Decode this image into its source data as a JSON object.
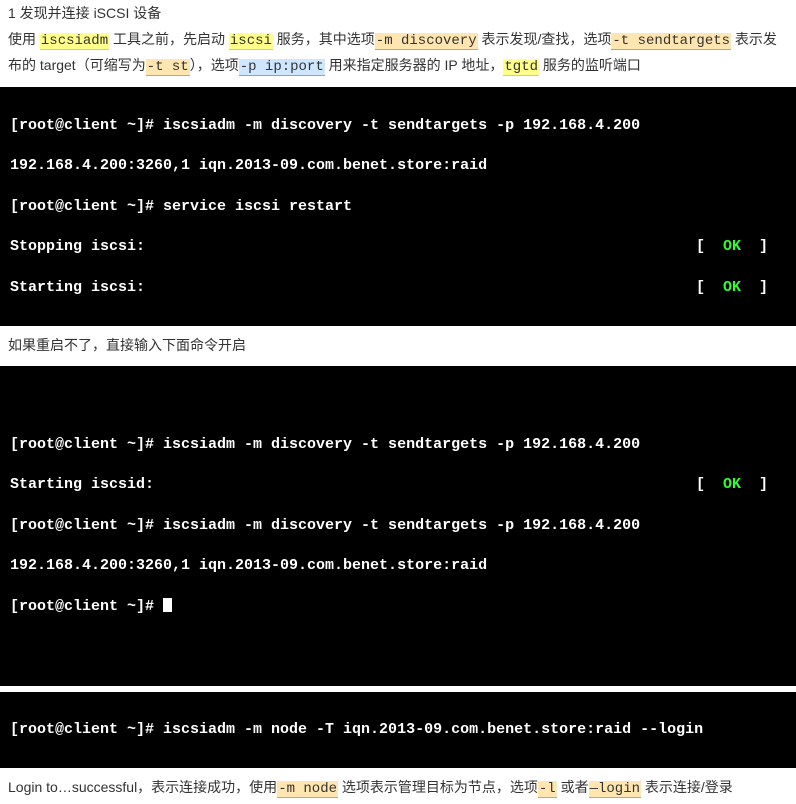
{
  "heading": "1 发现并连接 iSCSI 设备",
  "para1": {
    "t1": "使用 ",
    "hl1": "iscsiadm",
    "t2": " 工具之前，先启动 ",
    "hl2": "iscsi",
    "t3": " 服务，其中选项",
    "hl3": "-m discovery",
    "t4": " 表示发现/查找，选项",
    "hl4": "-t sendtargets",
    "t5": " 表示发布的 target（可缩写为",
    "hl5": "-t st",
    "t6": "），选项",
    "hl6": "-p ip:port",
    "t7": " 用来指定服务器的 IP 地址，",
    "hl7": "tgtd",
    "t8": " 服务的监听端口"
  },
  "term1": {
    "l1": "[root@client ~]# iscsiadm -m discovery -t sendtargets -p 192.168.4.200",
    "l2": "192.168.4.200:3260,1 iqn.2013-09.com.benet.store:raid",
    "l3": "[root@client ~]# service iscsi restart",
    "s1l": "Stopping iscsi:",
    "s2l": "Starting iscsi:",
    "lb": "[  ",
    "ok": "OK",
    "rb": "  ]"
  },
  "mid_text": "如果重启不了，直接输入下面命令开启",
  "term2": {
    "blank": " ",
    "l1": "[root@client ~]# iscsiadm -m discovery -t sendtargets -p 192.168.4.200",
    "s1l": "Starting iscsid:",
    "lb": "[  ",
    "ok": "OK",
    "rb": "  ]",
    "l3": "[root@client ~]# iscsiadm -m discovery -t sendtargets -p 192.168.4.200",
    "l4": "192.168.4.200:3260,1 iqn.2013-09.com.benet.store:raid",
    "l5": "[root@client ~]# "
  },
  "term3": {
    "l1": "[root@client ~]# iscsiadm -m node -T iqn.2013-09.com.benet.store:raid --login"
  },
  "para2": {
    "t1": "Login to…successful，表示连接成功，使用",
    "hl1": "-m node",
    "t2": " 选项表示管理目标为节点，选项",
    "hl2": "-l",
    "t3": " 或者",
    "hl3": "—login",
    "t4": " 表示连接/登录"
  }
}
